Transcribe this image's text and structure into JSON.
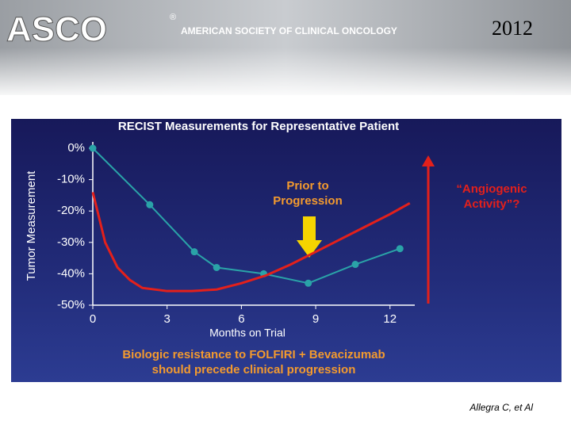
{
  "header": {
    "logo": "ASCO",
    "registered": "®",
    "society": "AMERICAN SOCIETY OF CLINICAL ONCOLOGY",
    "year": "2012"
  },
  "chart_data": {
    "type": "line",
    "title": "RECIST Measurements for Representative Patient",
    "y_label": "Tumor Measurement",
    "x_label": "Months on Trial",
    "xlim": [
      0,
      13
    ],
    "xticks": [
      0,
      3,
      6,
      9,
      12
    ],
    "ylim": [
      -50,
      0
    ],
    "yticks": [
      {
        "value": 0,
        "label": "0%"
      },
      {
        "value": -10,
        "label": "-10%"
      },
      {
        "value": -20,
        "label": "-20%"
      },
      {
        "value": -30,
        "label": "-30%"
      },
      {
        "value": -40,
        "label": "-40%"
      },
      {
        "value": -50,
        "label": "-50%"
      }
    ],
    "grid": false,
    "series": [
      {
        "color": "#2aa3a8",
        "markers": true,
        "x": [
          0,
          2.3,
          4.1,
          5.0,
          6.9,
          8.7,
          10.6,
          12.4
        ],
        "values": [
          0,
          -18,
          -33,
          -38,
          -40,
          -43,
          -37,
          -32
        ]
      },
      {
        "color": "#e3201b",
        "markers": false,
        "x": [
          0,
          0.5,
          1,
          1.5,
          2,
          3,
          4,
          5,
          6,
          7,
          8,
          9,
          10,
          11,
          12,
          12.8
        ],
        "values": [
          -14,
          -30,
          -38,
          -42,
          -44.5,
          -45.5,
          -45.5,
          -45,
          -43,
          -40.5,
          -37,
          -33,
          -29,
          -25,
          -21,
          -17.5
        ]
      }
    ],
    "annotations": [
      "Prior to",
      "Progression",
      "“Angiogenic",
      "Activity”?"
    ],
    "caption": [
      "Biologic resistance to FOLFIRI + Bevacizumab",
      "should precede clinical progression"
    ]
  },
  "footer": "Allegra C, et Al"
}
